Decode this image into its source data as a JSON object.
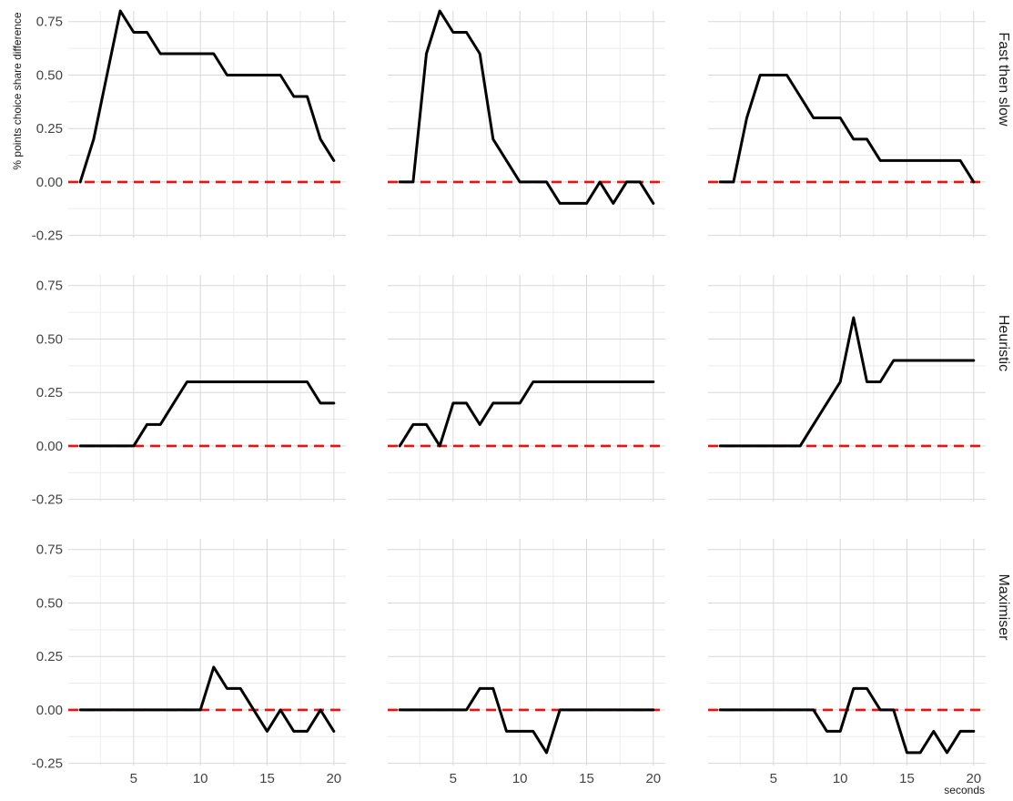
{
  "chart_data": {
    "type": "line",
    "layout": "facet-grid",
    "xlabel": "seconds",
    "ylabel": "% points choice share difference",
    "xlim": [
      0.1,
      20.9
    ],
    "ylim": [
      -0.26,
      0.8
    ],
    "x_ticks": [
      5,
      10,
      15,
      20
    ],
    "y_ticks": [
      -0.25,
      0.0,
      0.25,
      0.5,
      0.75
    ],
    "y_tick_labels": [
      "-0.25",
      "0.00",
      "0.25",
      "0.50",
      "0.75"
    ],
    "x_tick_labels": [
      "5",
      "10",
      "15",
      "20"
    ],
    "grid": true,
    "reference_line": {
      "y": 0,
      "style": "dashed",
      "color": "#ee1111"
    },
    "line_color": "#000000",
    "rows": [
      "Fast then slow",
      "Heuristic",
      "Maximiser"
    ],
    "panels": [
      {
        "row": 0,
        "col": 0,
        "x": [
          1,
          2,
          3,
          4,
          5,
          6,
          7,
          8,
          9,
          10,
          11,
          12,
          13,
          14,
          15,
          16,
          17,
          18,
          19,
          20
        ],
        "y": [
          0.0,
          0.2,
          0.5,
          0.8,
          0.7,
          0.7,
          0.6,
          0.6,
          0.6,
          0.6,
          0.6,
          0.5,
          0.5,
          0.5,
          0.5,
          0.5,
          0.4,
          0.4,
          0.2,
          0.1
        ]
      },
      {
        "row": 0,
        "col": 1,
        "x": [
          1,
          2,
          3,
          4,
          5,
          6,
          7,
          8,
          9,
          10,
          11,
          12,
          13,
          14,
          15,
          16,
          17,
          18,
          19,
          20
        ],
        "y": [
          0.0,
          0.0,
          0.6,
          0.8,
          0.7,
          0.7,
          0.6,
          0.2,
          0.1,
          0.0,
          0.0,
          0.0,
          -0.1,
          -0.1,
          -0.1,
          0.0,
          -0.1,
          0.0,
          0.0,
          -0.1
        ]
      },
      {
        "row": 0,
        "col": 2,
        "x": [
          1,
          2,
          3,
          4,
          5,
          6,
          7,
          8,
          9,
          10,
          11,
          12,
          13,
          14,
          15,
          16,
          17,
          18,
          19,
          20
        ],
        "y": [
          0.0,
          0.0,
          0.3,
          0.5,
          0.5,
          0.5,
          0.4,
          0.3,
          0.3,
          0.3,
          0.2,
          0.2,
          0.1,
          0.1,
          0.1,
          0.1,
          0.1,
          0.1,
          0.1,
          0.0
        ]
      },
      {
        "row": 1,
        "col": 0,
        "x": [
          1,
          2,
          3,
          4,
          5,
          6,
          7,
          8,
          9,
          10,
          11,
          12,
          13,
          14,
          15,
          16,
          17,
          18,
          19,
          20
        ],
        "y": [
          0.0,
          0.0,
          0.0,
          0.0,
          0.0,
          0.1,
          0.1,
          0.2,
          0.3,
          0.3,
          0.3,
          0.3,
          0.3,
          0.3,
          0.3,
          0.3,
          0.3,
          0.3,
          0.2,
          0.2
        ]
      },
      {
        "row": 1,
        "col": 1,
        "x": [
          1,
          2,
          3,
          4,
          5,
          6,
          7,
          8,
          9,
          10,
          11,
          12,
          13,
          14,
          15,
          16,
          17,
          18,
          19,
          20
        ],
        "y": [
          0.0,
          0.1,
          0.1,
          0.0,
          0.2,
          0.2,
          0.1,
          0.2,
          0.2,
          0.2,
          0.3,
          0.3,
          0.3,
          0.3,
          0.3,
          0.3,
          0.3,
          0.3,
          0.3,
          0.3
        ]
      },
      {
        "row": 1,
        "col": 2,
        "x": [
          1,
          2,
          3,
          4,
          5,
          6,
          7,
          8,
          9,
          10,
          11,
          12,
          13,
          14,
          15,
          16,
          17,
          18,
          19,
          20
        ],
        "y": [
          0.0,
          0.0,
          0.0,
          0.0,
          0.0,
          0.0,
          0.0,
          0.1,
          0.2,
          0.3,
          0.6,
          0.3,
          0.3,
          0.4,
          0.4,
          0.4,
          0.4,
          0.4,
          0.4,
          0.4
        ]
      },
      {
        "row": 2,
        "col": 0,
        "x": [
          1,
          2,
          3,
          4,
          5,
          6,
          7,
          8,
          9,
          10,
          11,
          12,
          13,
          14,
          15,
          16,
          17,
          18,
          19,
          20
        ],
        "y": [
          0.0,
          0.0,
          0.0,
          0.0,
          0.0,
          0.0,
          0.0,
          0.0,
          0.0,
          0.0,
          0.2,
          0.1,
          0.1,
          0.0,
          -0.1,
          0.0,
          -0.1,
          -0.1,
          0.0,
          -0.1
        ]
      },
      {
        "row": 2,
        "col": 1,
        "x": [
          1,
          2,
          3,
          4,
          5,
          6,
          7,
          8,
          9,
          10,
          11,
          12,
          13,
          14,
          15,
          16,
          17,
          18,
          19,
          20
        ],
        "y": [
          0.0,
          0.0,
          0.0,
          0.0,
          0.0,
          0.0,
          0.1,
          0.1,
          -0.1,
          -0.1,
          -0.1,
          -0.2,
          0.0,
          0.0,
          0.0,
          0.0,
          0.0,
          0.0,
          0.0,
          0.0
        ]
      },
      {
        "row": 2,
        "col": 2,
        "x": [
          1,
          2,
          3,
          4,
          5,
          6,
          7,
          8,
          9,
          10,
          11,
          12,
          13,
          14,
          15,
          16,
          17,
          18,
          19,
          20
        ],
        "y": [
          0.0,
          0.0,
          0.0,
          0.0,
          0.0,
          0.0,
          0.0,
          0.0,
          -0.1,
          -0.1,
          0.1,
          0.1,
          0.0,
          0.0,
          -0.2,
          -0.2,
          -0.1,
          -0.2,
          -0.1,
          -0.1
        ]
      }
    ]
  }
}
